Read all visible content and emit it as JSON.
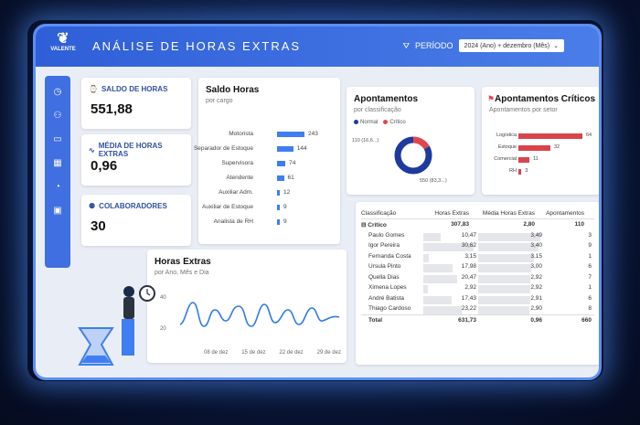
{
  "header": {
    "logo_text": "VALENTE",
    "title": "ANÁLISE DE HORAS EXTRAS",
    "period_label": "PERÍODO",
    "period_value": "2024 (Ano) + dezembro (Mês)"
  },
  "sidebar": {
    "items": [
      {
        "icon": "clock-icon"
      },
      {
        "icon": "user-icon"
      },
      {
        "icon": "card-icon"
      },
      {
        "icon": "calendar-icon"
      },
      {
        "icon": "gauge-icon"
      },
      {
        "icon": "id-card-icon"
      }
    ]
  },
  "kpis": [
    {
      "label": "SALDO DE HORAS",
      "value": "551,88"
    },
    {
      "label": "MÉDIA DE HORAS EXTRAS",
      "value": "0,96"
    },
    {
      "label": "COLABORADORES",
      "value": "30"
    }
  ],
  "saldo": {
    "title": "Saldo Horas",
    "subtitle": "por cargo",
    "rows": [
      {
        "cat": "Motorista",
        "val": "243",
        "n": 243
      },
      {
        "cat": "Separador de Estoque",
        "val": "144",
        "n": 144
      },
      {
        "cat": "Supervisora",
        "val": "74",
        "n": 74
      },
      {
        "cat": "Atendente",
        "val": "61",
        "n": 61
      },
      {
        "cat": "Auxiliar Adm.",
        "val": "12",
        "n": 12
      },
      {
        "cat": "Auxiliar de Estoque",
        "val": "9",
        "n": 9
      },
      {
        "cat": "Analista de RH",
        "val": "9",
        "n": 9
      }
    ]
  },
  "apontamentos": {
    "title": "Apontamentos",
    "subtitle": "por classificação",
    "legend_normal": "Normal",
    "legend_critico": "Crítico",
    "label_critico": "110 (16,6...)",
    "label_normal": "550 (83,3...)",
    "normal": 550,
    "critico": 110,
    "colors": {
      "normal": "#1e3a9e",
      "critico": "#e0474c"
    }
  },
  "criticos": {
    "title": "Apontamentos Críticos",
    "subtitle": "Apontamentos por setor",
    "rows": [
      {
        "cat": "Logística",
        "val": "64",
        "n": 64
      },
      {
        "cat": "Estoque",
        "val": "32",
        "n": 32
      },
      {
        "cat": "Comercial",
        "val": "11",
        "n": 11
      },
      {
        "cat": "RH",
        "val": "3",
        "n": 3
      }
    ]
  },
  "horas": {
    "title": "Horas Extras",
    "subtitle": "por Ano, Mês e Dia",
    "y_ticks": [
      "40",
      "20"
    ],
    "x_ticks": [
      "08 de dez",
      "15 de dez",
      "22 de dez",
      "29 de dez"
    ]
  },
  "tabela": {
    "headers": [
      "Classificação",
      "Horas Extras",
      "Média Horas Extras",
      "Apontamentos"
    ],
    "group": {
      "label": "Crítico",
      "horas": "307,83",
      "media": "2,80",
      "apont": "110"
    },
    "rows": [
      {
        "nome": "Paulo Gomes",
        "horas": "10,47",
        "media": "3,49",
        "apont": "3"
      },
      {
        "nome": "Igor Pereira",
        "horas": "30,62",
        "media": "3,40",
        "apont": "9"
      },
      {
        "nome": "Fernanda Costa",
        "horas": "3,15",
        "media": "3,15",
        "apont": "1"
      },
      {
        "nome": "Ursula Pinto",
        "horas": "17,98",
        "media": "3,00",
        "apont": "6"
      },
      {
        "nome": "Quella Dias",
        "horas": "20,47",
        "media": "2,92",
        "apont": "7"
      },
      {
        "nome": "Ximena Lopes",
        "horas": "2,92",
        "media": "2,92",
        "apont": "1"
      },
      {
        "nome": "André Batista",
        "horas": "17,43",
        "media": "2,91",
        "apont": "6"
      },
      {
        "nome": "Thiago Cardoso",
        "horas": "23,22",
        "media": "2,90",
        "apont": "8"
      }
    ],
    "total": {
      "label": "Total",
      "horas": "631,73",
      "media": "0,96",
      "apont": "660"
    }
  }
}
